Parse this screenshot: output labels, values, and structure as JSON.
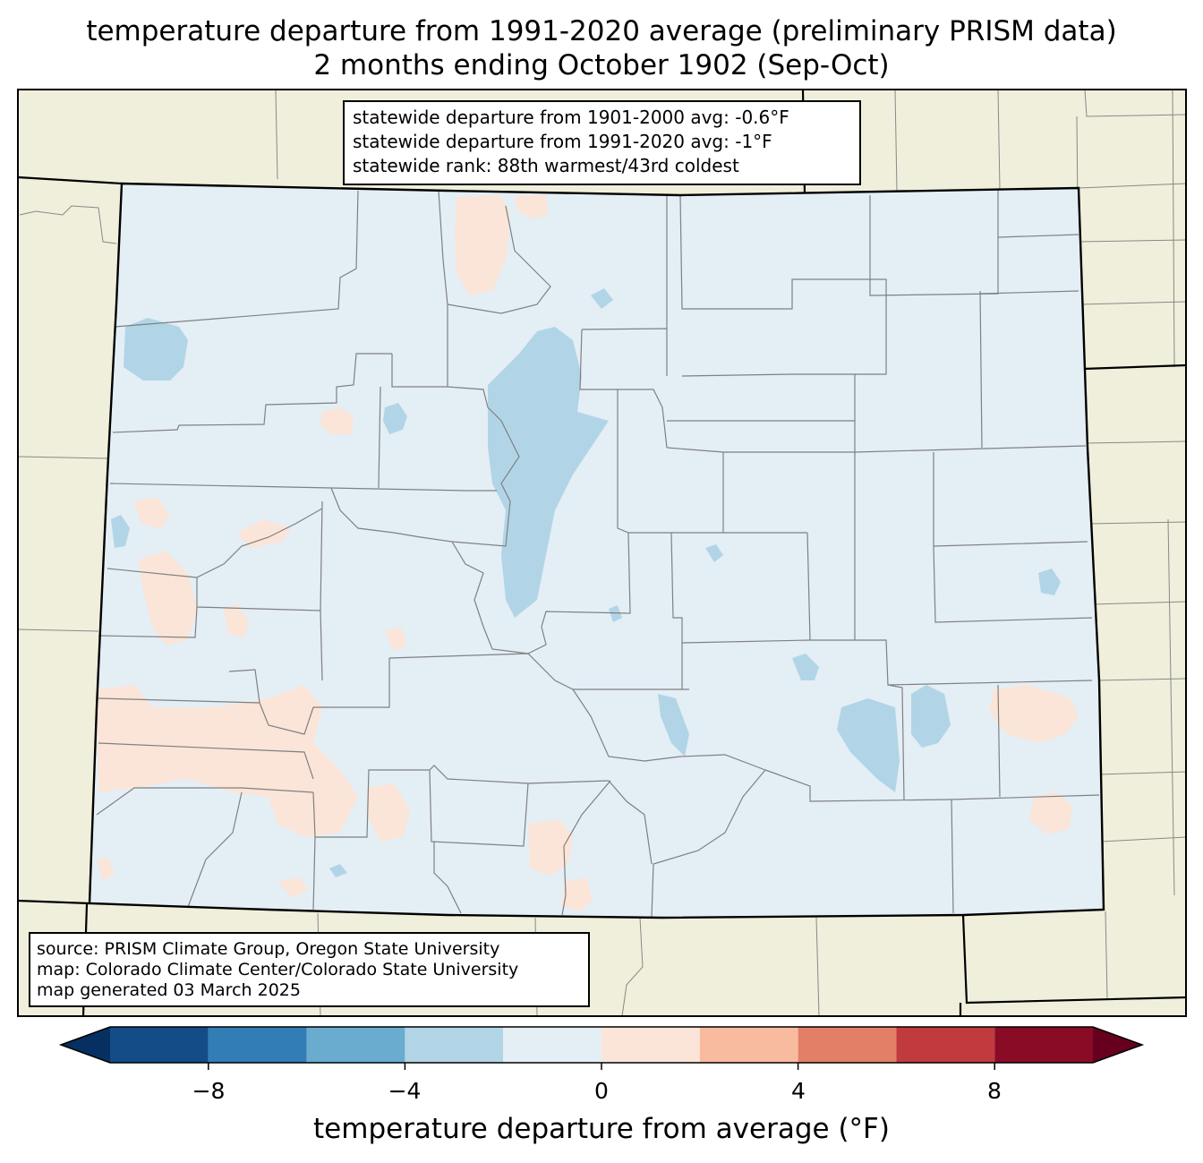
{
  "title": {
    "line1": "temperature departure from 1991-2020 average (preliminary PRISM data)",
    "line2": "2 months ending October 1902 (Sep-Oct)"
  },
  "stats": {
    "line1": "statewide departure from 1901-2000 avg: -0.6°F",
    "line2": "statewide departure from 1991-2020 avg: -1°F",
    "line3": "statewide rank: 88th warmest/43rd coldest"
  },
  "source": {
    "line1": "source: PRISM Climate Group, Oregon State University",
    "line2": "map: Colorado Climate Center/Colorado State University",
    "line3": "map generated 03 March 2025"
  },
  "colorbar": {
    "label": "temperature departure from average (°F)",
    "ticks": [
      "−8",
      "−4",
      "0",
      "4",
      "8"
    ],
    "bins": [
      -10,
      -8,
      -6,
      -4,
      -2,
      0,
      2,
      4,
      6,
      8,
      10
    ],
    "colors": [
      "#053061",
      "#134c87",
      "#327db6",
      "#6aacd0",
      "#b1d5e7",
      "#e4eef5",
      "#fbe5d8",
      "#f8bb9f",
      "#e27f66",
      "#c13a3e",
      "#8a0b25",
      "#67001f"
    ]
  },
  "map_colors": {
    "land": "#efefdc",
    "state_fill": "#e4eef5",
    "cool_anomaly": "#b1d5e7",
    "warm_anomaly": "#fbe5d8"
  }
}
